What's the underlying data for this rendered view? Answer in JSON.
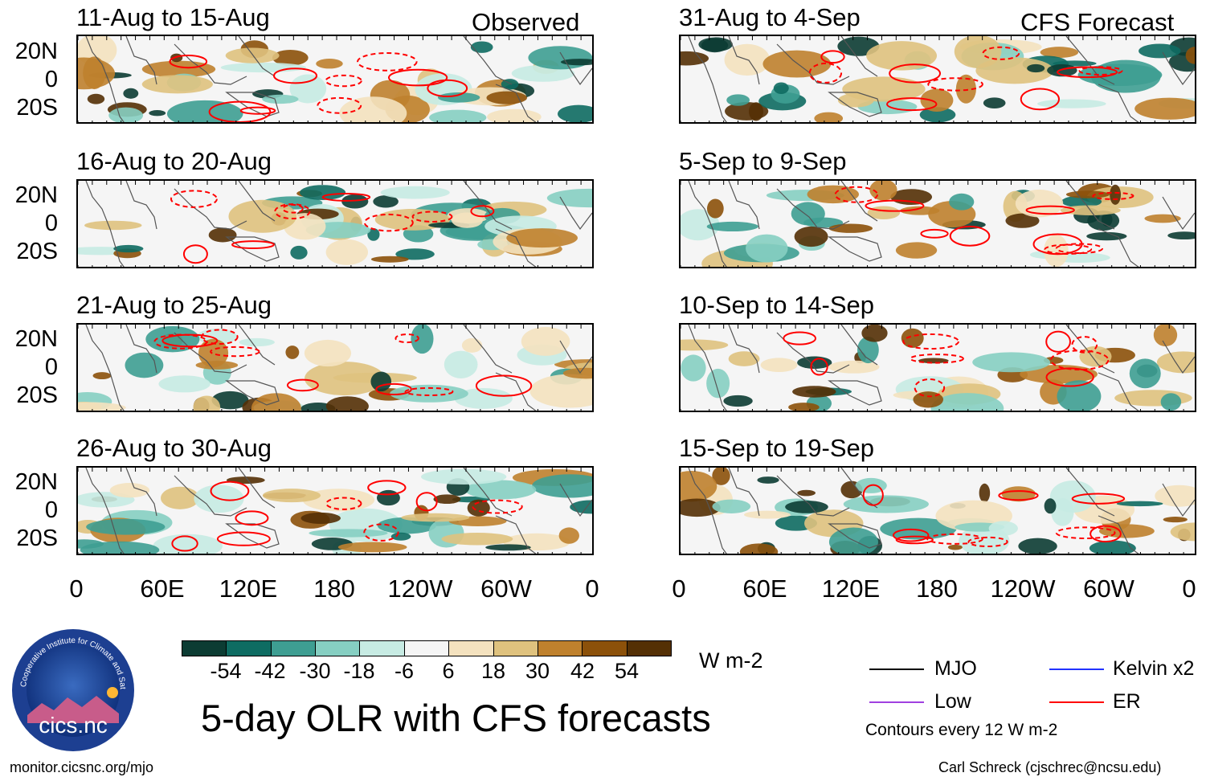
{
  "panels_left": {
    "header": "Observed",
    "titles": [
      "11-Aug to 15-Aug",
      "16-Aug to 20-Aug",
      "21-Aug to 25-Aug",
      "26-Aug to 30-Aug"
    ]
  },
  "panels_right": {
    "header": "CFS Forecast",
    "titles": [
      "31-Aug to 4-Sep",
      "5-Sep to 9-Sep",
      "10-Sep to 14-Sep",
      "15-Sep to 19-Sep"
    ]
  },
  "y_ticks": [
    "20N",
    "0",
    "20S"
  ],
  "x_ticks": [
    "0",
    "60E",
    "120E",
    "180",
    "120W",
    "60W",
    "0"
  ],
  "colorbar": {
    "labels": [
      "-54",
      "-42",
      "-30",
      "-18",
      "-6",
      "6",
      "18",
      "30",
      "42",
      "54"
    ],
    "colors": [
      "#0c3c33",
      "#0e6c62",
      "#3e9e92",
      "#86cfc2",
      "#c7ebe3",
      "#f5f5f5",
      "#f4e2bf",
      "#dfc27e",
      "#bf812d",
      "#8c510a",
      "#543005"
    ],
    "units": "W m-2"
  },
  "title": "5-day OLR with CFS forecasts",
  "legend": {
    "items": [
      {
        "label": "MJO",
        "color": "#000000"
      },
      {
        "label": "Kelvin x2",
        "color": "#2233ff"
      },
      {
        "label": "Low",
        "color": "#a040e0"
      },
      {
        "label": "ER",
        "color": "#ff0000"
      }
    ],
    "note": "Contours every 12 W m-2"
  },
  "logo_text": "cics.nc",
  "logo_ring_text": "Cooperative Institute for Climate and Satellites",
  "footer_left": "monitor.cicsnc.org/mjo",
  "footer_right": "Carl Schreck (cjschrec@ncsu.edu)"
}
